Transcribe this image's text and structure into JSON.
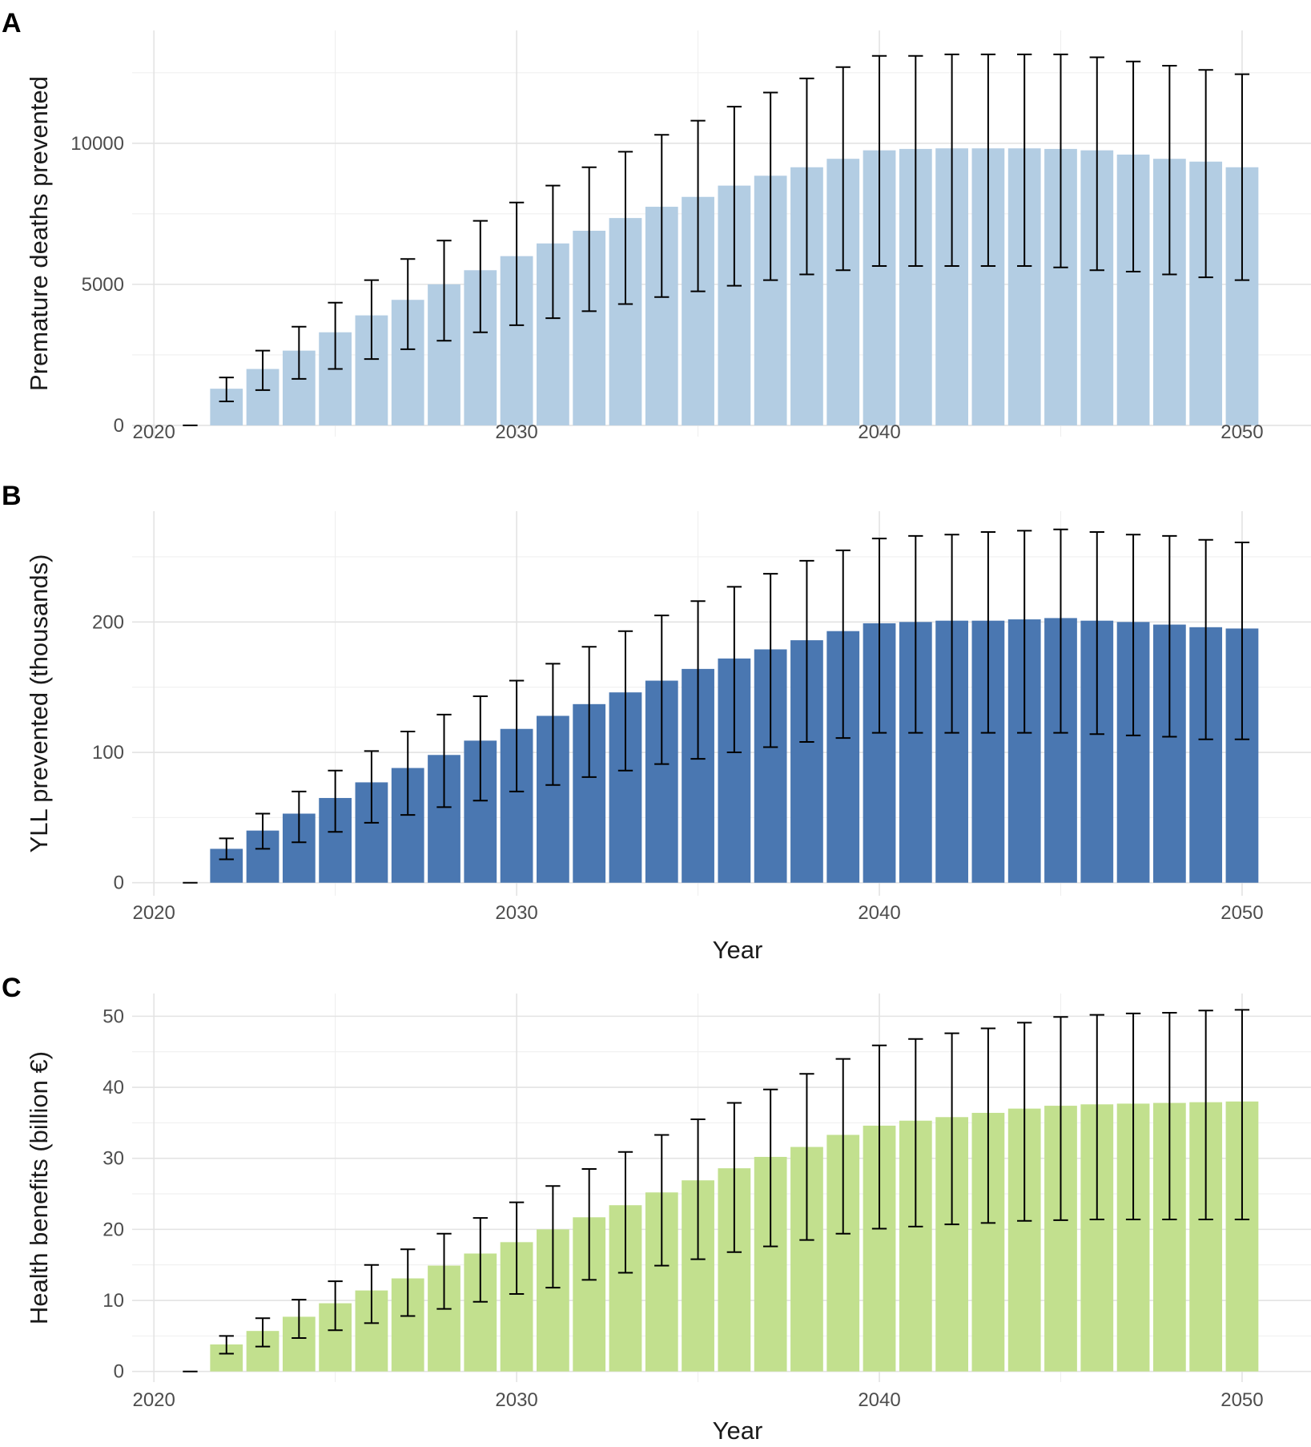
{
  "chart_data": [
    {
      "panel_label": "A",
      "type": "bar",
      "xlabel": "",
      "ylabel": "Premature deaths prevented",
      "x": [
        2021,
        2022,
        2023,
        2024,
        2025,
        2026,
        2027,
        2028,
        2029,
        2030,
        2031,
        2032,
        2033,
        2034,
        2035,
        2036,
        2037,
        2038,
        2039,
        2040,
        2041,
        2042,
        2043,
        2044,
        2045,
        2046,
        2047,
        2048,
        2049,
        2050
      ],
      "values": [
        0,
        1300,
        2000,
        2650,
        3300,
        3900,
        4450,
        5000,
        5500,
        6000,
        6450,
        6900,
        7350,
        7750,
        8100,
        8500,
        8850,
        9150,
        9450,
        9750,
        9800,
        9820,
        9820,
        9820,
        9800,
        9750,
        9600,
        9450,
        9350,
        9150
      ],
      "lower": [
        0,
        850,
        1250,
        1650,
        2000,
        2350,
        2700,
        3000,
        3300,
        3550,
        3800,
        4050,
        4300,
        4550,
        4750,
        4950,
        5150,
        5350,
        5500,
        5650,
        5650,
        5650,
        5650,
        5650,
        5600,
        5500,
        5450,
        5350,
        5250,
        5150
      ],
      "upper": [
        0,
        1700,
        2650,
        3500,
        4350,
        5150,
        5900,
        6550,
        7250,
        7900,
        8500,
        9150,
        9700,
        10300,
        10800,
        11300,
        11800,
        12300,
        12700,
        13100,
        13100,
        13150,
        13150,
        13150,
        13150,
        13050,
        12900,
        12750,
        12600,
        12450
      ],
      "xticks": [
        2020,
        2030,
        2040,
        2050
      ],
      "yticks": [
        0,
        5000,
        10000
      ],
      "ylim": [
        -400,
        14000
      ],
      "xlim": [
        2019.4,
        2051.9
      ],
      "bar_color": "#b3cde3"
    },
    {
      "panel_label": "B",
      "type": "bar",
      "xlabel": "Year",
      "ylabel": "YLL prevented (thousands)",
      "x": [
        2021,
        2022,
        2023,
        2024,
        2025,
        2026,
        2027,
        2028,
        2029,
        2030,
        2031,
        2032,
        2033,
        2034,
        2035,
        2036,
        2037,
        2038,
        2039,
        2040,
        2041,
        2042,
        2043,
        2044,
        2045,
        2046,
        2047,
        2048,
        2049,
        2050
      ],
      "values": [
        0,
        26,
        40,
        53,
        65,
        77,
        88,
        98,
        109,
        118,
        128,
        137,
        146,
        155,
        164,
        172,
        179,
        186,
        193,
        199,
        200,
        201,
        201,
        202,
        203,
        201,
        200,
        198,
        196,
        195
      ],
      "lower": [
        0,
        18,
        26,
        31,
        39,
        46,
        52,
        58,
        63,
        70,
        75,
        81,
        86,
        91,
        95,
        100,
        104,
        108,
        111,
        115,
        115,
        115,
        115,
        115,
        115,
        114,
        113,
        112,
        110,
        110
      ],
      "upper": [
        0,
        34,
        53,
        70,
        86,
        101,
        116,
        129,
        143,
        155,
        168,
        181,
        193,
        205,
        216,
        227,
        237,
        247,
        255,
        264,
        266,
        267,
        269,
        270,
        271,
        269,
        267,
        266,
        263,
        261
      ],
      "xticks": [
        2020,
        2030,
        2040,
        2050
      ],
      "yticks": [
        0,
        100,
        200
      ],
      "ylim": [
        -10,
        285
      ],
      "xlim": [
        2019.4,
        2051.9
      ],
      "bar_color": "#4a77b1"
    },
    {
      "panel_label": "C",
      "type": "bar",
      "xlabel": "Year",
      "ylabel": "Health benefits (billion €)",
      "x": [
        2021,
        2022,
        2023,
        2024,
        2025,
        2026,
        2027,
        2028,
        2029,
        2030,
        2031,
        2032,
        2033,
        2034,
        2035,
        2036,
        2037,
        2038,
        2039,
        2040,
        2041,
        2042,
        2043,
        2044,
        2045,
        2046,
        2047,
        2048,
        2049,
        2050
      ],
      "values": [
        0,
        3.8,
        5.7,
        7.7,
        9.6,
        11.4,
        13.1,
        14.9,
        16.6,
        18.2,
        20.0,
        21.7,
        23.4,
        25.2,
        26.9,
        28.6,
        30.2,
        31.6,
        33.3,
        34.6,
        35.3,
        35.8,
        36.4,
        37.0,
        37.4,
        37.6,
        37.7,
        37.8,
        37.9,
        38.0
      ],
      "lower": [
        0,
        2.5,
        3.5,
        4.7,
        5.8,
        6.8,
        7.8,
        8.8,
        9.8,
        10.9,
        11.8,
        12.9,
        13.9,
        14.9,
        15.8,
        16.8,
        17.6,
        18.5,
        19.4,
        20.1,
        20.4,
        20.7,
        20.9,
        21.2,
        21.3,
        21.4,
        21.4,
        21.4,
        21.4,
        21.4
      ],
      "upper": [
        0,
        5.0,
        7.5,
        10.1,
        12.7,
        15.0,
        17.2,
        19.4,
        21.6,
        23.8,
        26.1,
        28.5,
        30.9,
        33.3,
        35.5,
        37.8,
        39.7,
        41.9,
        44.0,
        45.9,
        46.8,
        47.6,
        48.3,
        49.1,
        49.9,
        50.2,
        50.4,
        50.5,
        50.8,
        50.9
      ],
      "xticks": [
        2020,
        2030,
        2040,
        2050
      ],
      "yticks": [
        0,
        10,
        20,
        30,
        40,
        50
      ],
      "ylim": [
        -1.5,
        53.2
      ],
      "xlim": [
        2019.4,
        2051.9
      ],
      "bar_color": "#c2e08e"
    }
  ]
}
